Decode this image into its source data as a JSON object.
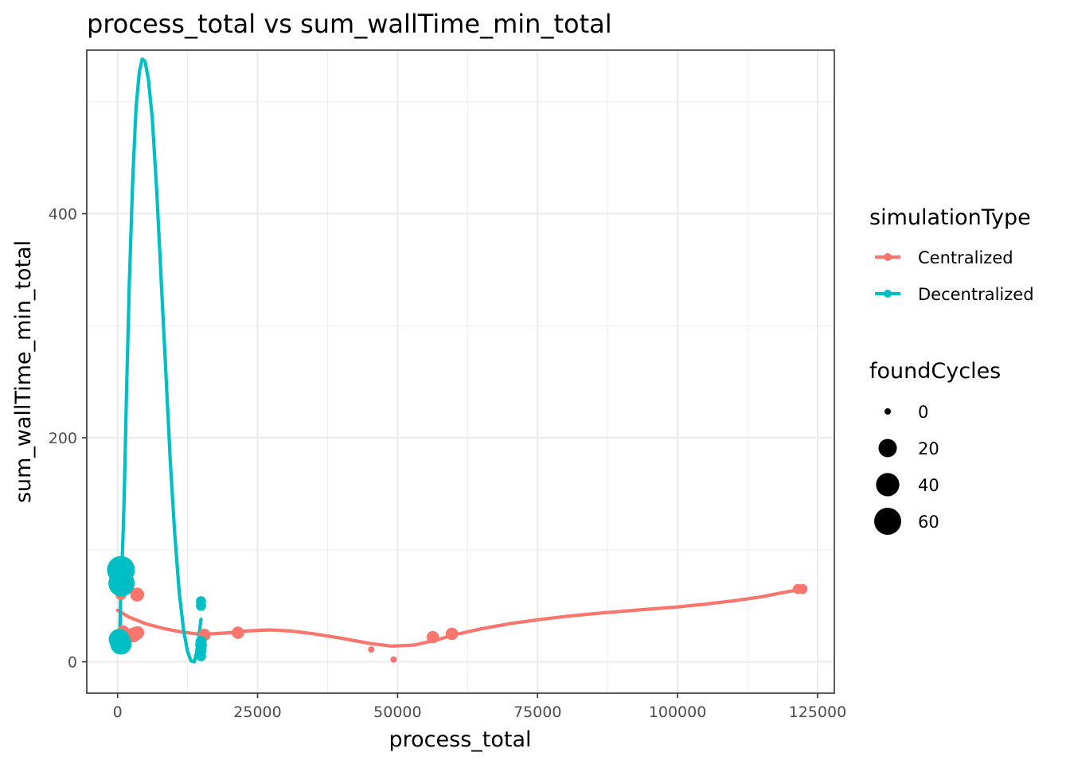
{
  "chart_data": {
    "type": "scatter",
    "title": "process_total  vs  sum_wallTime_min_total",
    "xlabel": "process_total",
    "ylabel": "sum_wallTime_min_total",
    "xlim": [
      -5500,
      128000
    ],
    "ylim": [
      -28,
      546
    ],
    "x_ticks": [
      0,
      25000,
      50000,
      75000,
      100000,
      125000
    ],
    "x_tick_labels": [
      "0",
      "25000",
      "50000",
      "75000",
      "100000",
      "125000"
    ],
    "y_ticks": [
      0,
      200,
      400
    ],
    "y_tick_labels": [
      "0",
      "200",
      "400"
    ],
    "grid": true,
    "legend_position": "right",
    "color_legend": {
      "title": "simulationType",
      "entries": [
        {
          "name": "Centralized",
          "color": "#F8766D"
        },
        {
          "name": "Decentralized",
          "color": "#00BFC4"
        }
      ]
    },
    "size_legend": {
      "title": "foundCycles",
      "entries": [
        {
          "label": "0",
          "value": 0
        },
        {
          "label": "20",
          "value": 20
        },
        {
          "label": "40",
          "value": 40
        },
        {
          "label": "60",
          "value": 60
        }
      ]
    },
    "series": [
      {
        "name": "Centralized",
        "color": "#F8766D",
        "points": [
          {
            "x": 600,
            "y": 60,
            "size": 3
          },
          {
            "x": 1000,
            "y": 27,
            "size": 5
          },
          {
            "x": 1300,
            "y": 25,
            "size": 3
          },
          {
            "x": 2800,
            "y": 24,
            "size": 10
          },
          {
            "x": 3200,
            "y": 25,
            "size": 8
          },
          {
            "x": 3600,
            "y": 26,
            "size": 6
          },
          {
            "x": 3500,
            "y": 60,
            "size": 8
          },
          {
            "x": 15500,
            "y": 24,
            "size": 5
          },
          {
            "x": 21500,
            "y": 26,
            "size": 5
          },
          {
            "x": 45300,
            "y": 11,
            "size": 0
          },
          {
            "x": 49300,
            "y": 2,
            "size": 0
          },
          {
            "x": 56300,
            "y": 22,
            "size": 5
          },
          {
            "x": 59700,
            "y": 25,
            "size": 5
          },
          {
            "x": 121500,
            "y": 65,
            "size": 2
          },
          {
            "x": 122300,
            "y": 65,
            "size": 2
          }
        ],
        "smooth": [
          [
            0,
            46
          ],
          [
            2000,
            40
          ],
          [
            5000,
            34
          ],
          [
            8000,
            30
          ],
          [
            11000,
            27
          ],
          [
            14000,
            25
          ],
          [
            17000,
            25
          ],
          [
            20000,
            26
          ],
          [
            23000,
            27.5
          ],
          [
            27000,
            28.5
          ],
          [
            31000,
            27.5
          ],
          [
            35000,
            25
          ],
          [
            40000,
            21
          ],
          [
            45000,
            16.5
          ],
          [
            49000,
            14
          ],
          [
            53000,
            15
          ],
          [
            57000,
            19.5
          ],
          [
            60000,
            24
          ],
          [
            65000,
            29.5
          ],
          [
            70000,
            34
          ],
          [
            75000,
            37.5
          ],
          [
            80000,
            40.5
          ],
          [
            85000,
            43
          ],
          [
            90000,
            45
          ],
          [
            95000,
            47
          ],
          [
            100000,
            49
          ],
          [
            105000,
            51.5
          ],
          [
            110000,
            54.5
          ],
          [
            115000,
            58
          ],
          [
            118000,
            61
          ],
          [
            122300,
            65
          ]
        ]
      },
      {
        "name": "Decentralized",
        "color": "#00BFC4",
        "points": [
          {
            "x": 600,
            "y": 82,
            "size": 65
          },
          {
            "x": 700,
            "y": 70,
            "size": 55
          },
          {
            "x": 300,
            "y": 20,
            "size": 30
          },
          {
            "x": 600,
            "y": 16,
            "size": 32
          },
          {
            "x": 14900,
            "y": 54,
            "size": 2
          },
          {
            "x": 14900,
            "y": 50,
            "size": 2
          },
          {
            "x": 14900,
            "y": 18,
            "size": 3
          },
          {
            "x": 14900,
            "y": 15,
            "size": 4
          },
          {
            "x": 14900,
            "y": 10,
            "size": 3
          },
          {
            "x": 14900,
            "y": 5,
            "size": 2
          }
        ],
        "smooth": [
          [
            100,
            25
          ],
          [
            250,
            15
          ],
          [
            400,
            20
          ],
          [
            500,
            45
          ],
          [
            600,
            75
          ],
          [
            700,
            82
          ],
          [
            900,
            100
          ],
          [
            1200,
            150
          ],
          [
            1600,
            240
          ],
          [
            2100,
            340
          ],
          [
            2700,
            430
          ],
          [
            3300,
            495
          ],
          [
            3900,
            527
          ],
          [
            4400,
            538
          ],
          [
            4900,
            536
          ],
          [
            5500,
            520
          ],
          [
            6200,
            485
          ],
          [
            7000,
            420
          ],
          [
            7800,
            340
          ],
          [
            8600,
            260
          ],
          [
            9400,
            180
          ],
          [
            10200,
            115
          ],
          [
            11000,
            62
          ],
          [
            11800,
            28
          ],
          [
            12500,
            9
          ],
          [
            13100,
            1
          ],
          [
            13700,
            0
          ],
          [
            14100,
            8
          ],
          [
            14500,
            22
          ],
          [
            14900,
            38
          ]
        ]
      }
    ]
  }
}
